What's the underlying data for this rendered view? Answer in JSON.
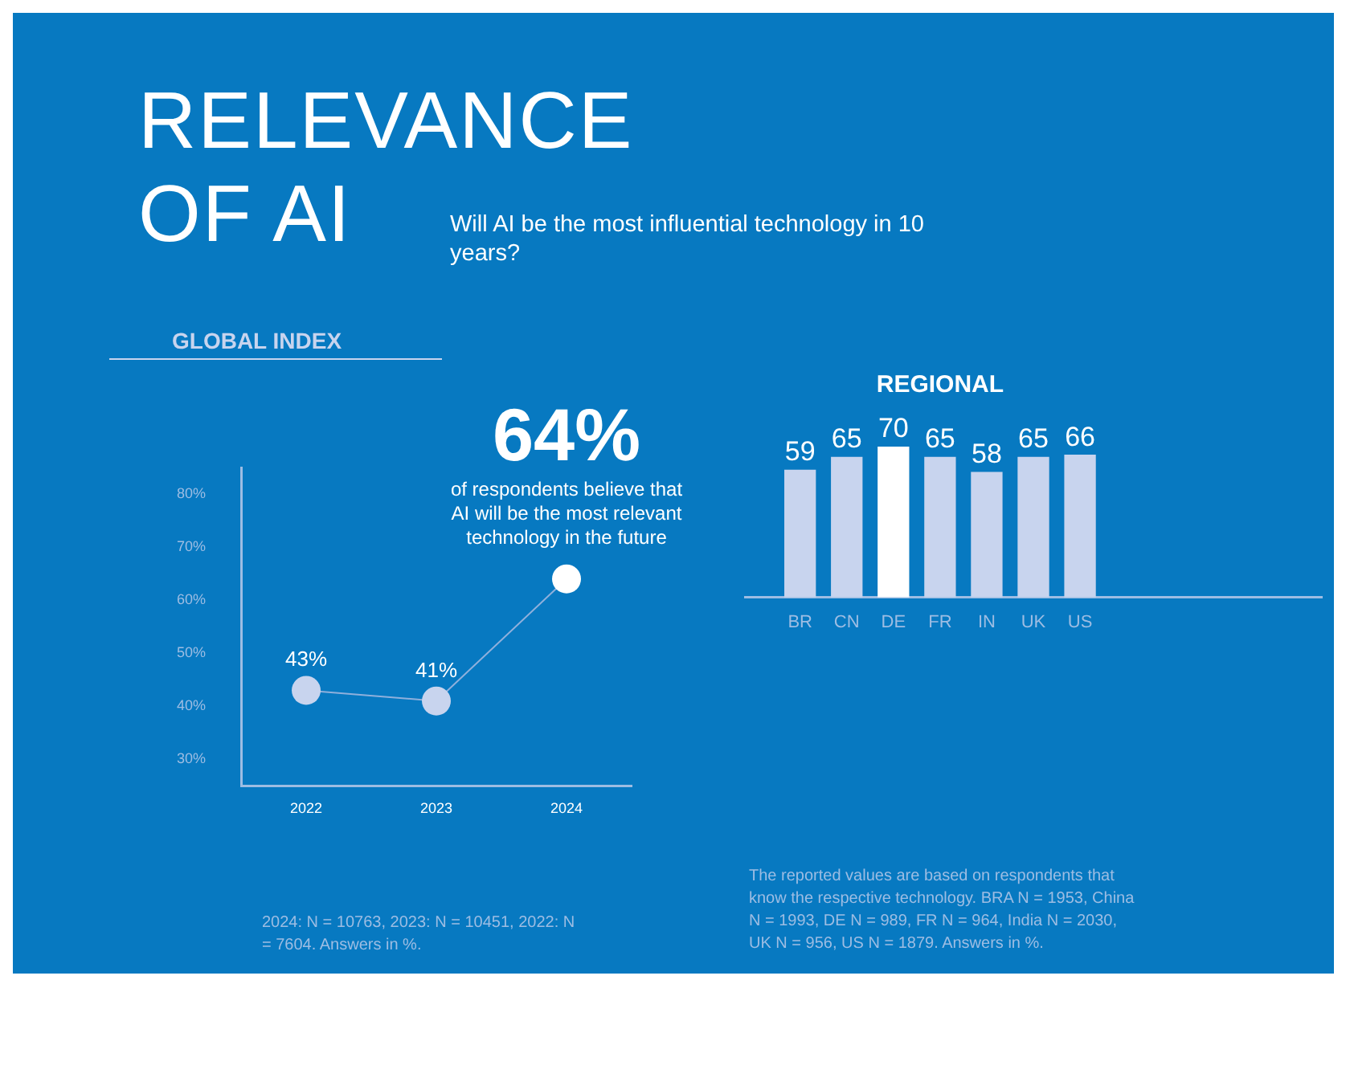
{
  "chart_data": [
    {
      "type": "other",
      "title": "RELEVANCE OF AI",
      "subtitle": "Will AI be the most influential technology in 10 years?"
    },
    {
      "type": "line",
      "title": "GLOBAL INDEX",
      "categories": [
        "2022",
        "2023",
        "2024"
      ],
      "series": [
        {
          "color": "#8fb0dc",
          "colors": [
            "#c8d4ee",
            "#c8d4ee",
            "#ffffff"
          ],
          "values": [
            43,
            41,
            64
          ],
          "value_labels": [
            "43%",
            "41%",
            "64%"
          ]
        }
      ],
      "ylim": [
        25,
        85
      ],
      "yticks": [
        {
          "value": 30,
          "label": "30%"
        },
        {
          "value": 40,
          "label": "40%"
        },
        {
          "value": 50,
          "label": "50%"
        },
        {
          "value": 60,
          "label": "60%"
        },
        {
          "value": 70,
          "label": "70%"
        },
        {
          "value": 80,
          "label": "80%"
        }
      ],
      "grid": false,
      "legend": false,
      "marker": "circle",
      "line_style": "solid",
      "annotations": [
        {
          "text": "of respondents believe that AI will be the most relevant technology in the future",
          "x": "2024",
          "y": 64
        },
        "2024: N = 10763, 2023: N = 10451, 2022: N = 7604. Answers in %."
      ]
    },
    {
      "type": "bar",
      "title": "REGIONAL",
      "categories": [
        "BR",
        "CN",
        "DE",
        "FR",
        "IN",
        "UK",
        "US"
      ],
      "values": [
        59,
        65,
        70,
        65,
        58,
        65,
        66
      ],
      "colors": [
        "#c8d4ee",
        "#c8d4ee",
        "#ffffff",
        "#c8d4ee",
        "#c8d4ee",
        "#c8d4ee",
        "#c8d4ee"
      ],
      "data_labels": true,
      "tick_labels": "x",
      "grid": false,
      "legend": false,
      "annotations": [
        "The reported values are based on respondents that know the respective technology. BRA N = 1953, China N = 1993, DE N = 989, FR N = 964, India N = 2030, UK N = 956, US N = 1879. Answers in %."
      ]
    }
  ]
}
